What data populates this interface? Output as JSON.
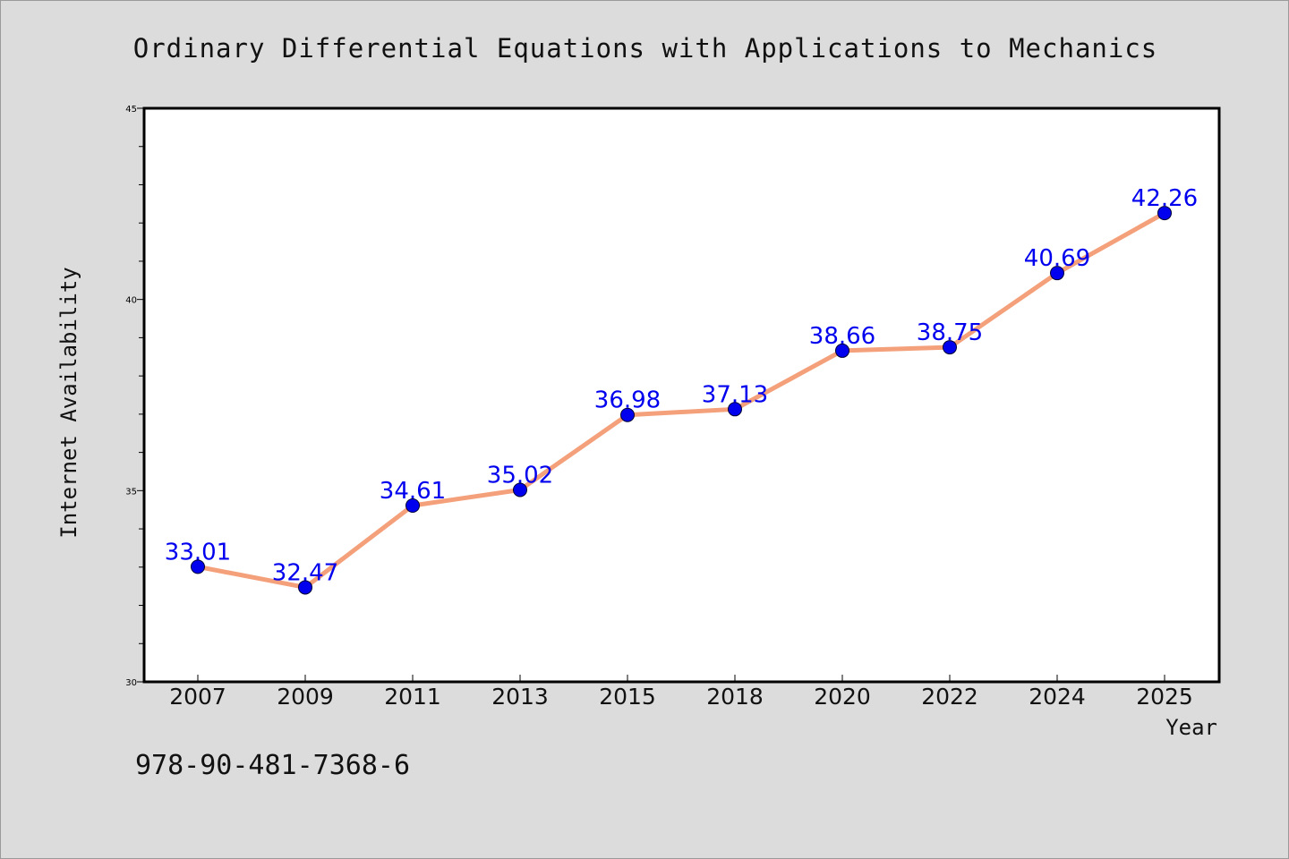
{
  "chart_data": {
    "type": "line",
    "title": "Ordinary Differential Equations with Applications to Mechanics",
    "xlabel": "Year",
    "ylabel": "Internet Availability",
    "categories": [
      "2007",
      "2009",
      "2011",
      "2013",
      "2015",
      "2018",
      "2020",
      "2022",
      "2024",
      "2025"
    ],
    "series": [
      {
        "values": [
          33.01,
          32.47,
          34.61,
          35.02,
          36.98,
          37.13,
          38.66,
          38.75,
          40.69,
          42.26
        ],
        "line_color": "#f4a07a",
        "marker_color": "#0000ee"
      }
    ],
    "data_labels": [
      "33.01",
      "32.47",
      "34.61",
      "35.02",
      "36.98",
      "37.13",
      "38.66",
      "38.75",
      "40.69",
      "42.26"
    ],
    "ylim": [
      30,
      45
    ],
    "yticks": [
      "30",
      "35",
      "40",
      "45"
    ],
    "grid": false,
    "legend": "none"
  },
  "annotation": {
    "isbn": "978-90-481-7368-6"
  }
}
